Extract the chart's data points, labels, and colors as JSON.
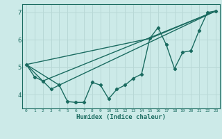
{
  "xlabel": "Humidex (Indice chaleur)",
  "bg_color": "#cceae8",
  "grid_color": "#b8d8d6",
  "line_color": "#1a6b60",
  "xlim": [
    -0.5,
    23.5
  ],
  "ylim": [
    3.5,
    7.3
  ],
  "yticks": [
    4,
    5,
    6,
    7
  ],
  "xticks": [
    0,
    1,
    2,
    3,
    4,
    5,
    6,
    7,
    8,
    9,
    10,
    11,
    12,
    13,
    14,
    15,
    16,
    17,
    18,
    19,
    20,
    21,
    22,
    23
  ],
  "series": [
    [
      0,
      5.1
    ],
    [
      1,
      4.65
    ],
    [
      2,
      4.5
    ],
    [
      3,
      4.2
    ],
    [
      4,
      4.35
    ],
    [
      5,
      3.75
    ],
    [
      6,
      3.72
    ],
    [
      7,
      3.72
    ],
    [
      8,
      4.45
    ],
    [
      9,
      4.35
    ],
    [
      10,
      3.85
    ],
    [
      11,
      4.2
    ],
    [
      12,
      4.35
    ],
    [
      13,
      4.6
    ],
    [
      14,
      4.75
    ],
    [
      15,
      6.05
    ],
    [
      16,
      6.45
    ],
    [
      17,
      5.82
    ],
    [
      18,
      4.95
    ],
    [
      19,
      5.55
    ],
    [
      20,
      5.6
    ],
    [
      21,
      6.35
    ],
    [
      22,
      7.0
    ],
    [
      23,
      7.05
    ]
  ],
  "line2": [
    [
      0,
      5.1
    ],
    [
      2,
      4.5
    ],
    [
      23,
      7.05
    ]
  ],
  "line3": [
    [
      0,
      5.1
    ],
    [
      4,
      4.35
    ],
    [
      23,
      7.05
    ]
  ],
  "line4": [
    [
      0,
      5.1
    ],
    [
      15,
      6.05
    ],
    [
      23,
      7.05
    ]
  ]
}
